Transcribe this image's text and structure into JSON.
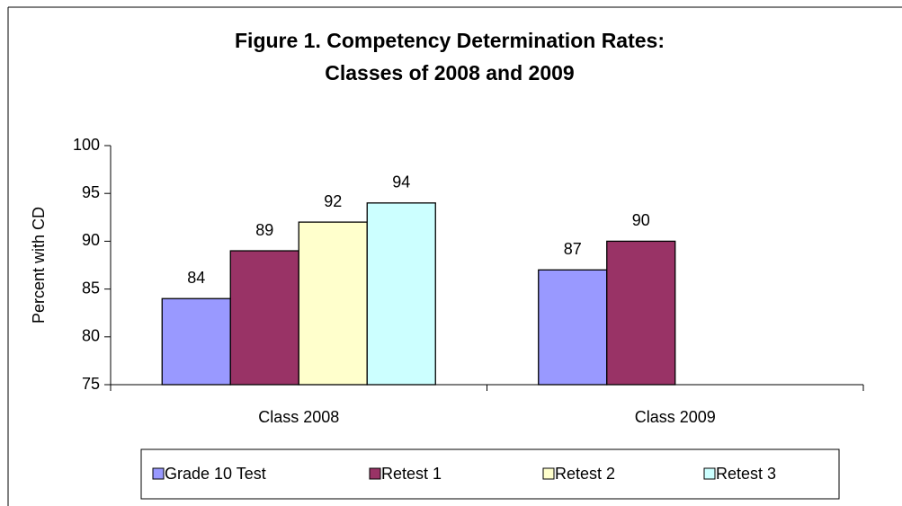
{
  "chart_data": {
    "type": "bar",
    "title": "Figure 1. Competency Determination Rates:",
    "subtitle": "Classes of 2008 and 2009",
    "ylabel": "Percent with CD",
    "categories": [
      "Class 2008",
      "Class 2009"
    ],
    "series": [
      {
        "name": "Grade 10 Test",
        "color": "#9999ff",
        "values": [
          84,
          87
        ]
      },
      {
        "name": "Retest 1",
        "color": "#993366",
        "values": [
          89,
          90
        ]
      },
      {
        "name": "Retest 2",
        "color": "#ffffcc",
        "values": [
          92,
          null
        ]
      },
      {
        "name": "Retest 3",
        "color": "#ccffff",
        "values": [
          94,
          null
        ]
      }
    ],
    "ylim": [
      75,
      100
    ],
    "yticks": [
      75,
      80,
      85,
      90,
      95,
      100
    ],
    "grid": false,
    "legend": "bottom"
  }
}
